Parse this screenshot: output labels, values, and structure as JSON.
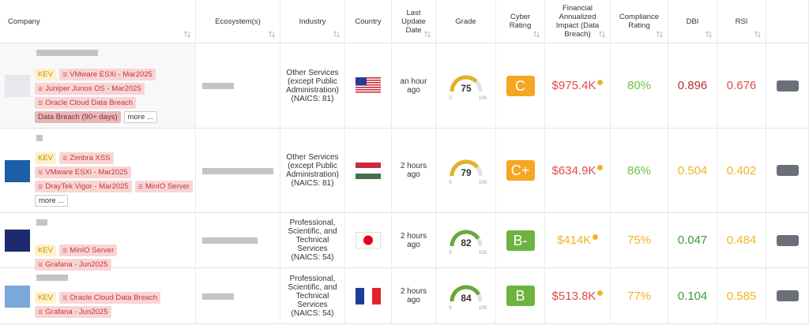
{
  "table": {
    "columns": [
      "Company",
      "Ecosystem(s)",
      "Industry",
      "Country",
      "Last Update Date",
      "Grade",
      "Cyber Rating",
      "Financial Annualized Impact (Data Breach)",
      "Compliance Rating",
      "DBI",
      "RSI"
    ],
    "gauge_min": 0,
    "gauge_max": 100,
    "rows": [
      {
        "tags": [
          {
            "text": "KEV",
            "kind": "kev"
          },
          {
            "text": "VMware ESXi - Mar2025",
            "kind": "vuln"
          },
          {
            "text": "Juniper Junos OS - Mar2025",
            "kind": "vuln"
          },
          {
            "text": "Oracle Cloud Data Breach",
            "kind": "vuln"
          },
          {
            "text": "Data Breach (90+ days)",
            "kind": "breach"
          }
        ],
        "more": "more ...",
        "industry": "Other Services (except Public Administration) (NAICS: 81)",
        "flag": "us",
        "updated": "an hour ago",
        "grade": 75,
        "grade_color": "#e0b224",
        "cyber_rating": "C",
        "cyber_color": "#f5a623",
        "impact": "$975.4K",
        "impact_color": "#e04b4b",
        "compliance": "80%",
        "compliance_color": "#6cc24a",
        "dbi": 0.896,
        "dbi_color": "#b03333",
        "rsi": 0.676,
        "rsi_color": "#e04b4b"
      },
      {
        "tags": [
          {
            "text": "KEV",
            "kind": "kev"
          },
          {
            "text": "Zimbra XSS",
            "kind": "vuln"
          },
          {
            "text": "VMware ESXi - Mar2025",
            "kind": "vuln"
          },
          {
            "text": "DrayTek Vigor - Mar2025",
            "kind": "vuln"
          },
          {
            "text": "MinIO Server",
            "kind": "vuln"
          }
        ],
        "more": "more ...",
        "industry": "Other Services (except Public Administration) (NAICS: 81)",
        "flag": "hu",
        "updated": "2 hours ago",
        "grade": 79,
        "grade_color": "#e0b224",
        "cyber_rating": "C+",
        "cyber_color": "#f5a623",
        "impact": "$634.9K",
        "impact_color": "#e04b4b",
        "compliance": "86%",
        "compliance_color": "#6cc24a",
        "dbi": 0.504,
        "dbi_color": "#f0b429",
        "rsi": 0.402,
        "rsi_color": "#f0b429"
      },
      {
        "tags": [
          {
            "text": "KEV",
            "kind": "kev"
          },
          {
            "text": "MinIO Server",
            "kind": "vuln"
          },
          {
            "text": "Grafana - Jun2025",
            "kind": "vuln"
          }
        ],
        "industry": "Professional, Scientific, and Technical Services (NAICS: 54)",
        "flag": "jp",
        "updated": "2 hours ago",
        "grade": 82,
        "grade_color": "#6aa83a",
        "cyber_rating": "B-",
        "cyber_color": "#6db33f",
        "impact": "$414K",
        "impact_color": "#f0b429",
        "compliance": "75%",
        "compliance_color": "#f0b429",
        "dbi": 0.047,
        "dbi_color": "#3a9a3a",
        "rsi": 0.484,
        "rsi_color": "#f0b429"
      },
      {
        "tags": [
          {
            "text": "KEV",
            "kind": "kev"
          },
          {
            "text": "Oracle Cloud Data Breach",
            "kind": "vuln"
          },
          {
            "text": "Grafana - Jun2025",
            "kind": "vuln"
          }
        ],
        "industry": "Professional, Scientific, and Technical Services (NAICS: 54)",
        "flag": "fr",
        "updated": "2 hours ago",
        "grade": 84,
        "grade_color": "#6aa83a",
        "cyber_rating": "B",
        "cyber_color": "#6db33f",
        "impact": "$513.8K",
        "impact_color": "#e04b4b",
        "compliance": "77%",
        "compliance_color": "#f0b429",
        "dbi": 0.104,
        "dbi_color": "#3a9a3a",
        "rsi": 0.585,
        "rsi_color": "#f0b429"
      }
    ]
  }
}
